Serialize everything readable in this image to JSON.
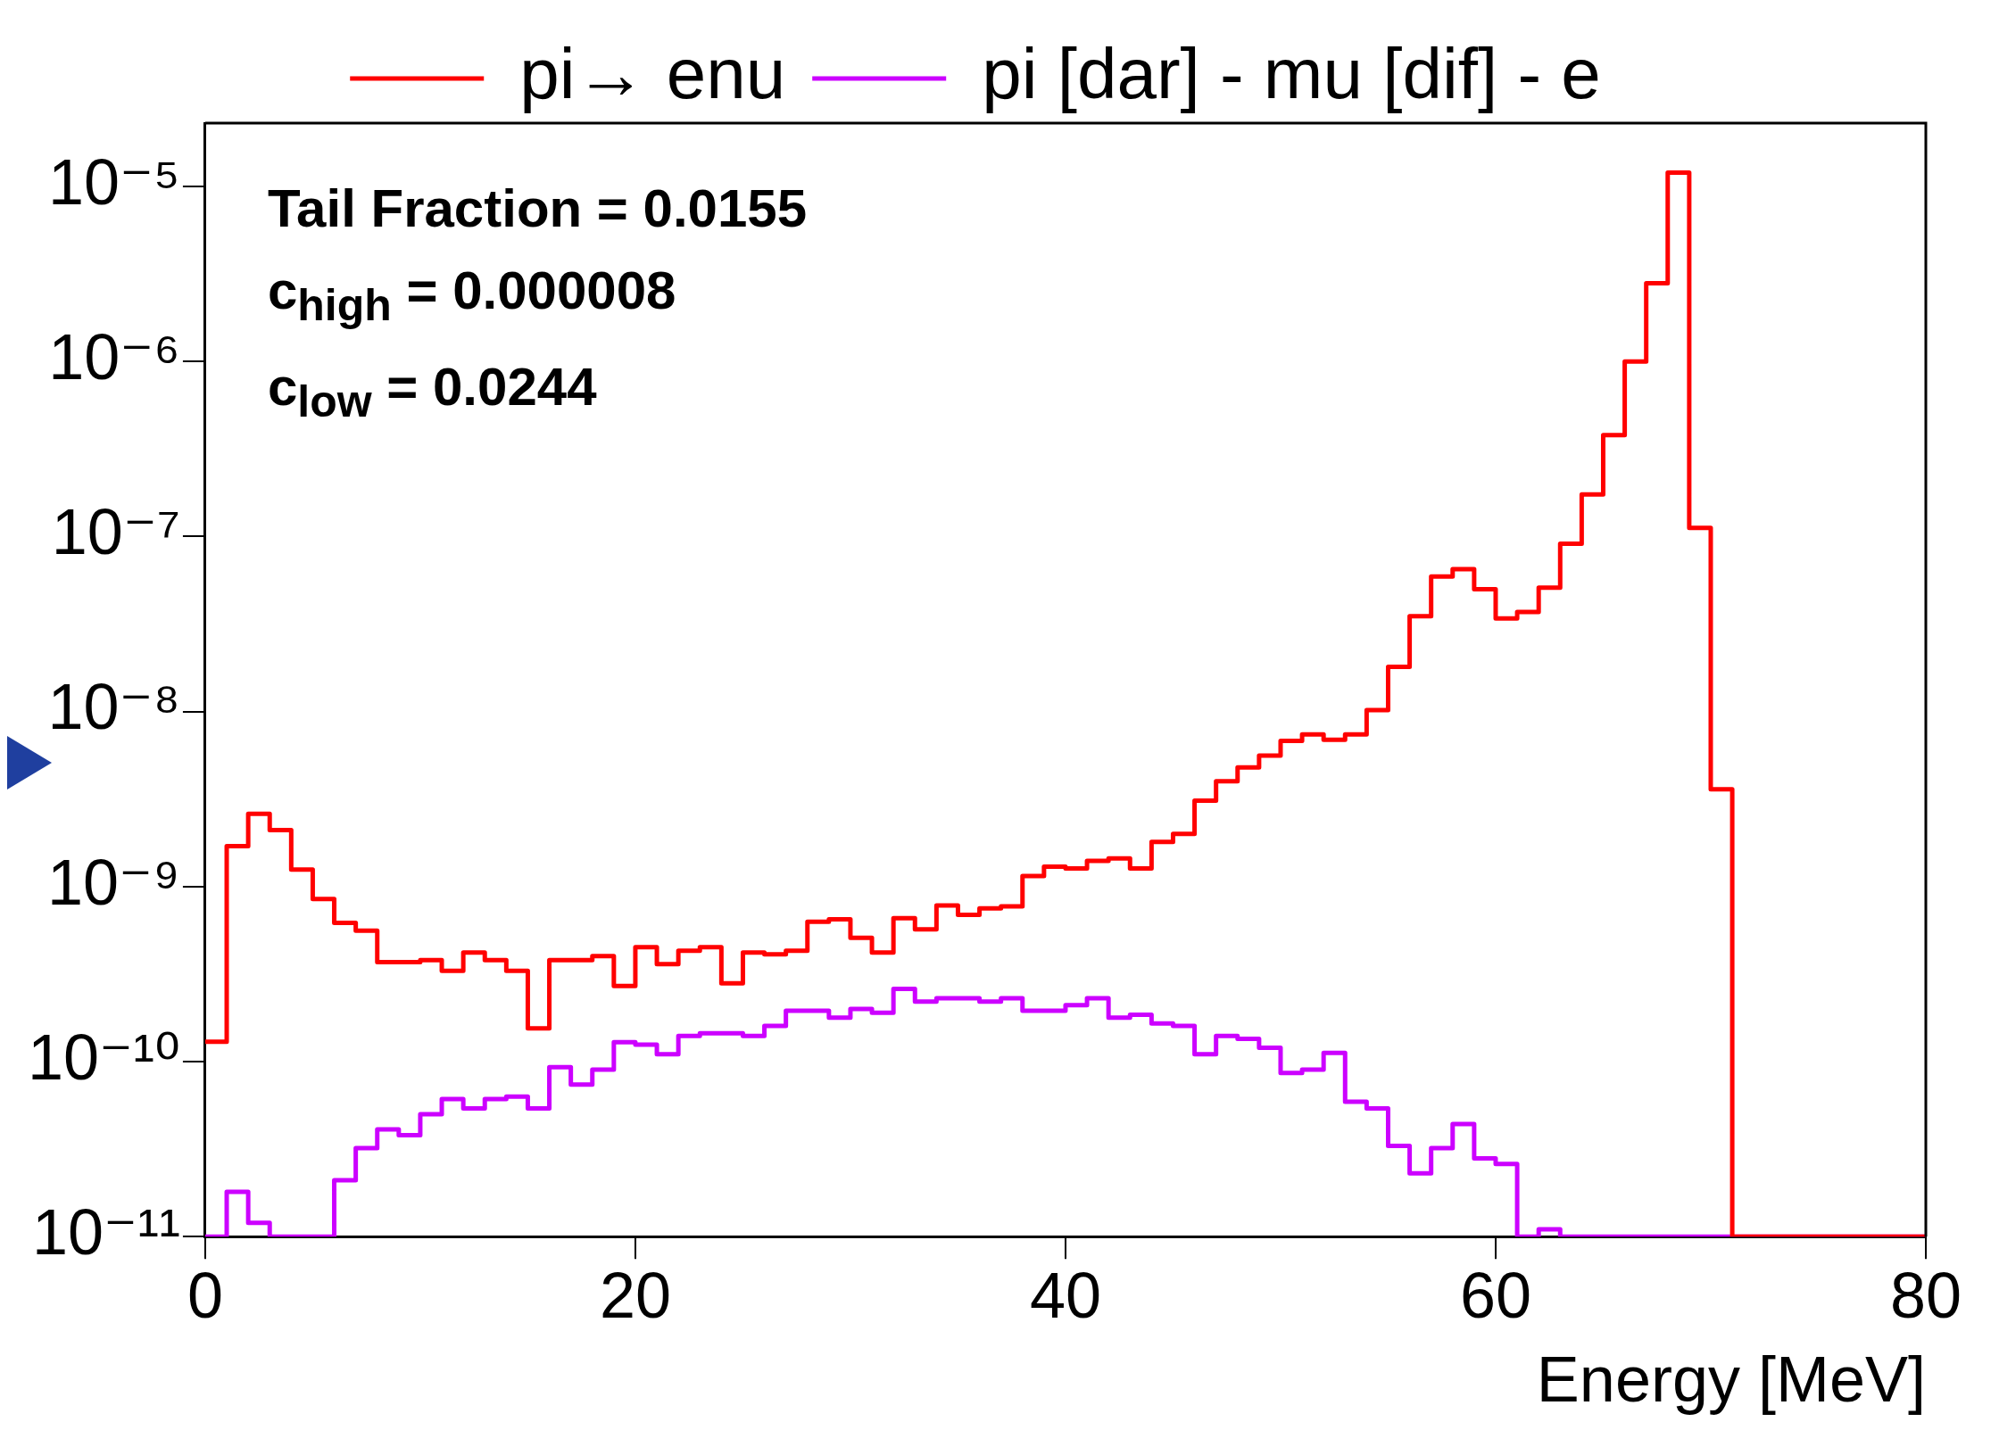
{
  "chart_data": {
    "type": "histogram",
    "xlabel": "Energy [MeV]",
    "bins": [
      0,
      1,
      2,
      3,
      4,
      5,
      6,
      7,
      8,
      9,
      10,
      11,
      12,
      13,
      14,
      15,
      16,
      17,
      18,
      19,
      20,
      21,
      22,
      23,
      24,
      25,
      26,
      27,
      28,
      29,
      30,
      31,
      32,
      33,
      34,
      35,
      36,
      37,
      38,
      39,
      40,
      41,
      42,
      43,
      44,
      45,
      46,
      47,
      48,
      49,
      50,
      51,
      52,
      53,
      54,
      55,
      56,
      57,
      58,
      59,
      60,
      61,
      62,
      63,
      64,
      65,
      66,
      67,
      68,
      69,
      70,
      71,
      72,
      73,
      74,
      75,
      76,
      77,
      78,
      79,
      80
    ],
    "series": [
      {
        "name": "pi→ enu",
        "color": "#ff0000",
        "values": [
          1.3e-10,
          1.7e-09,
          2.6e-09,
          2.1e-09,
          1.25e-09,
          8.5e-10,
          6.2e-10,
          5.6e-10,
          3.7e-10,
          3.7e-10,
          3.8e-10,
          3.3e-10,
          4.2e-10,
          3.8e-10,
          3.3e-10,
          1.55e-10,
          3.8e-10,
          3.8e-10,
          4e-10,
          2.7e-10,
          4.5e-10,
          3.6e-10,
          4.3e-10,
          4.5e-10,
          2.8e-10,
          4.2e-10,
          4.1e-10,
          4.3e-10,
          6.3e-10,
          6.5e-10,
          5.1e-10,
          4.2e-10,
          6.6e-10,
          5.7e-10,
          7.8e-10,
          6.9e-10,
          7.5e-10,
          7.7e-10,
          1.15e-09,
          1.3e-09,
          1.27e-09,
          1.4e-09,
          1.45e-09,
          1.27e-09,
          1.8e-09,
          2e-09,
          3.1e-09,
          4e-09,
          4.8e-09,
          5.6e-09,
          6.8e-09,
          7.4e-09,
          6.9e-09,
          7.4e-09,
          1.02e-08,
          1.8e-08,
          3.5e-08,
          5.9e-08,
          6.5e-08,
          5e-08,
          3.4e-08,
          3.7e-08,
          5.1e-08,
          9.1e-08,
          1.74e-07,
          3.8e-07,
          1e-06,
          2.8e-06,
          1.2e-05,
          1.12e-07,
          3.6e-09,
          1e-11,
          1e-11,
          1e-11,
          1e-11,
          1e-11,
          1e-11,
          1e-11,
          1e-11,
          1e-11
        ]
      },
      {
        "name": "pi [dar] - mu [dif] - e",
        "color": "#cc00ff",
        "values": [
          1e-11,
          1.8e-11,
          1.2e-11,
          1e-11,
          1e-11,
          1e-11,
          2.1e-11,
          3.2e-11,
          4.1e-11,
          3.8e-11,
          5e-11,
          6.1e-11,
          5.4e-11,
          6.1e-11,
          6.3e-11,
          5.4e-11,
          9.3e-11,
          7.4e-11,
          9e-11,
          1.29e-10,
          1.25e-10,
          1.1e-10,
          1.4e-10,
          1.45e-10,
          1.45e-10,
          1.4e-10,
          1.6e-10,
          1.95e-10,
          1.95e-10,
          1.78e-10,
          2e-10,
          1.9e-10,
          2.6e-10,
          2.2e-10,
          2.3e-10,
          2.3e-10,
          2.2e-10,
          2.3e-10,
          1.95e-10,
          1.95e-10,
          2.1e-10,
          2.3e-10,
          1.78e-10,
          1.85e-10,
          1.65e-10,
          1.6e-10,
          1.1e-10,
          1.4e-10,
          1.35e-10,
          1.2e-10,
          8.6e-11,
          9e-11,
          1.12e-10,
          5.9e-11,
          5.4e-11,
          3.3e-11,
          2.3e-11,
          3.2e-11,
          4.4e-11,
          2.8e-11,
          2.6e-11,
          1e-11,
          1.1e-11,
          1e-11,
          1e-11,
          1e-11,
          1e-11,
          1e-11,
          1e-11,
          1e-11,
          1e-11,
          1e-11,
          1e-11,
          1e-11,
          1e-11,
          1e-11,
          1e-11,
          1e-11,
          1e-11,
          1e-11
        ]
      }
    ],
    "xlim": [
      0,
      80
    ],
    "xticks": [
      0,
      20,
      40,
      60,
      80
    ],
    "ylim": [
      1e-11,
      2.3e-05
    ],
    "log": "y",
    "yticks": [
      {
        "value": 1e-11,
        "label": "10⁻¹¹"
      },
      {
        "value": 1e-10,
        "label": "10⁻¹⁰"
      },
      {
        "value": 1e-09,
        "label": "10⁻⁹"
      },
      {
        "value": 1e-08,
        "label": "10⁻⁸"
      },
      {
        "value": 1e-07,
        "label": "10⁻⁷"
      },
      {
        "value": 1e-06,
        "label": "10⁻⁶"
      },
      {
        "value": 1e-05,
        "label": "10⁻⁵"
      }
    ],
    "grid": false,
    "legend": "top",
    "annotations": [
      "Tail Fraction = 0.0155",
      "c$_{high}$ = 0.000008",
      "c$_{low}$ = 0.0244"
    ]
  }
}
